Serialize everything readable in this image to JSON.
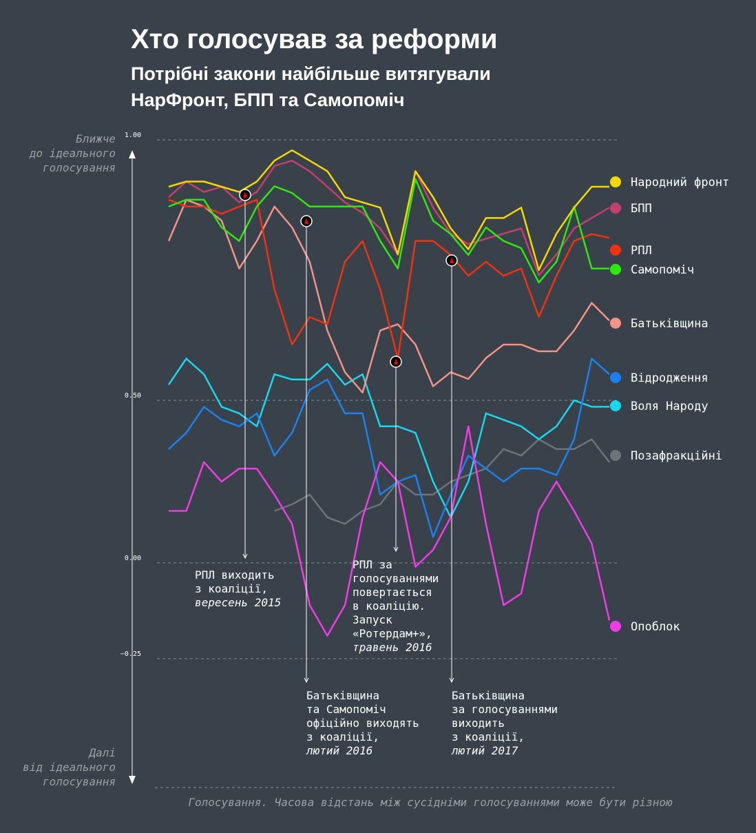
{
  "chart_data": {
    "type": "line",
    "title": "Хто голосував за реформи",
    "subtitle": [
      "Потрібні закони найбільше витягували",
      "НарФронт, БПП та Самопоміч"
    ],
    "y_label_top": [
      "Ближче",
      "до ідеального",
      "голосування"
    ],
    "y_label_bottom": [
      "Далі",
      "від ідеального",
      "голосування"
    ],
    "x_label": "Голосування. Часова відстань між сусідніми голосуваннями може бути різною",
    "ylim": [
      -0.25,
      1
    ],
    "yticks": [
      {
        "value": 1,
        "label": "1.00"
      },
      {
        "value": 0.5,
        "label": "0.50"
      },
      {
        "value": 0,
        "label": "0.00"
      },
      {
        "value": -0.25,
        "label": "−0.25"
      }
    ],
    "grid": true,
    "series": [
      {
        "name": "Народний фронт",
        "color": "#f5d800",
        "values": [
          0.91,
          0.92,
          0.92,
          0.91,
          0.9,
          0.92,
          0.96,
          0.98,
          0.96,
          0.94,
          0.89,
          0.88,
          0.87,
          0.78,
          0.94,
          0.89,
          0.83,
          0.79,
          0.85,
          0.85,
          0.87,
          0.75,
          0.82,
          0.87,
          0.91,
          0.91
        ]
      },
      {
        "name": "БПП",
        "color": "#c2406e",
        "values": [
          0.89,
          0.92,
          0.9,
          0.91,
          0.88,
          0.9,
          0.95,
          0.96,
          0.94,
          0.91,
          0.88,
          0.86,
          0.83,
          0.78,
          0.94,
          0.87,
          0.82,
          0.8,
          0.81,
          0.82,
          0.83,
          0.74,
          0.78,
          0.83,
          0.85,
          0.87
        ]
      },
      {
        "name": "РПЛ",
        "color": "#f0320f",
        "values": [
          0.885,
          0.872,
          0.872,
          0.858,
          0.872,
          0.885,
          0.713,
          0.607,
          0.66,
          0.646,
          0.766,
          0.806,
          0.713,
          0.58,
          0.806,
          0.806,
          0.779,
          0.739,
          0.766,
          0.739,
          0.753,
          0.66,
          0.739,
          0.806,
          0.819,
          0.812
        ]
      },
      {
        "name": "Самопоміч",
        "color": "#2ee80f",
        "values": [
          0.872,
          0.885,
          0.885,
          0.832,
          0.806,
          0.872,
          0.911,
          0.898,
          0.872,
          0.872,
          0.872,
          0.872,
          0.806,
          0.753,
          0.925,
          0.845,
          0.819,
          0.779,
          0.832,
          0.806,
          0.792,
          0.726,
          0.766,
          0.872,
          0.753,
          0.753
        ]
      },
      {
        "name": "Батьківщина",
        "color": "#f59387",
        "values": [
          0.806,
          0.885,
          0.872,
          0.845,
          0.753,
          0.806,
          0.872,
          0.832,
          0.766,
          0.634,
          0.554,
          0.515,
          0.634,
          0.646,
          0.607,
          0.527,
          0.554,
          0.541,
          0.581,
          0.607,
          0.607,
          0.594,
          0.594,
          0.634,
          0.687,
          0.653
        ]
      },
      {
        "name": "Відродження",
        "color": "#1a82f0",
        "values": [
          0.35,
          0.4,
          0.48,
          0.44,
          0.42,
          0.46,
          0.33,
          0.4,
          0.52,
          0.54,
          0.46,
          0.46,
          0.21,
          0.25,
          0.27,
          0.08,
          0.21,
          0.33,
          0.29,
          0.25,
          0.29,
          0.29,
          0.27,
          0.38,
          0.58,
          0.55
        ]
      },
      {
        "name": "Воля Народу",
        "color": "#18d8f0",
        "values": [
          0.53,
          0.58,
          0.55,
          0.48,
          0.46,
          0.42,
          0.55,
          0.54,
          0.54,
          0.57,
          0.53,
          0.55,
          0.42,
          0.42,
          0.4,
          0.25,
          0.14,
          0.25,
          0.46,
          0.44,
          0.42,
          0.38,
          0.42,
          0.5,
          0.48,
          0.48
        ]
      },
      {
        "name": "Позафракційні",
        "color": "#6e7478",
        "values": [
          null,
          null,
          null,
          null,
          null,
          null,
          0.16,
          0.18,
          0.21,
          0.14,
          0.12,
          0.16,
          0.18,
          0.25,
          0.21,
          0.21,
          0.25,
          0.27,
          0.29,
          0.35,
          0.33,
          0.38,
          0.35,
          0.35,
          0.38,
          0.31
        ]
      },
      {
        "name": "Опоблок",
        "color": "#f03ce8",
        "values": [
          0.16,
          0.16,
          0.31,
          0.25,
          0.29,
          0.29,
          0.21,
          0.12,
          -0.11,
          -0.19,
          -0.11,
          0.14,
          0.31,
          0.25,
          -0.01,
          0.04,
          0.14,
          0.42,
          0.12,
          -0.11,
          -0.08,
          0.16,
          0.25,
          0.16,
          0.06,
          -0.15
        ]
      }
    ],
    "annotations": [
      {
        "lines": [
          "РПЛ виходить",
          "з коаліції,"
        ],
        "date": "вересень 2015"
      },
      {
        "lines": [
          "Батьківщина",
          "та Самопоміч",
          "офіційно виходять",
          "з коаліції,"
        ],
        "date": "лютий 2016"
      },
      {
        "lines": [
          "РПЛ за",
          "голосуваннями",
          "повертається",
          "в коаліцію.",
          "Запуск",
          "«Ротердам+»,"
        ],
        "date": "травень 2016"
      },
      {
        "lines": [
          "Батьківщина",
          "за голосуваннями",
          "виходить",
          "з коаліції,"
        ],
        "date": "лютий 2017"
      }
    ]
  }
}
